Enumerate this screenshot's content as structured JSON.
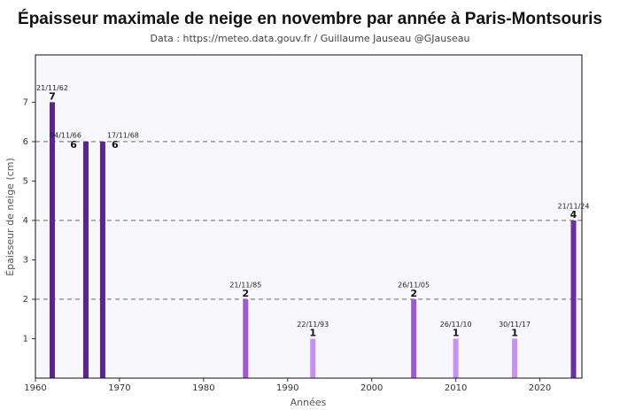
{
  "chart_data": {
    "type": "bar",
    "title": "Épaisseur maximale de neige en novembre par année à Paris-Montsouris",
    "subtitle": "Data : https://meteo.data.gouv.fr / Guillaume Jauseau @GJauseau",
    "x_label": "Années",
    "y_label": "Épaisseur de neige (cm)",
    "x": [
      1962,
      1966,
      1968,
      1985,
      1993,
      2005,
      2010,
      2017,
      2024
    ],
    "values": [
      7,
      6,
      6,
      2,
      1,
      2,
      1,
      1,
      4
    ],
    "dates": [
      "21/11/62",
      "04/11/66",
      "17/11/68",
      "21/11/85",
      "22/11/93",
      "26/11/05",
      "26/11/10",
      "30/11/17",
      "21/11/24"
    ],
    "colors": [
      "#5a2591",
      "#5a2591",
      "#5a2591",
      "#9d5bd2",
      "#c590f2",
      "#9d5bd2",
      "#c590f2",
      "#c590f2",
      "#6a2ea3"
    ],
    "xlim": [
      1960,
      2025
    ],
    "ylim": [
      0,
      8.2
    ],
    "xticks": [
      1960,
      1970,
      1980,
      1990,
      2000,
      2010,
      2020
    ],
    "yticks": [
      1,
      2,
      3,
      4,
      5,
      6,
      7
    ],
    "grid_lines": [
      2,
      4,
      6
    ]
  }
}
